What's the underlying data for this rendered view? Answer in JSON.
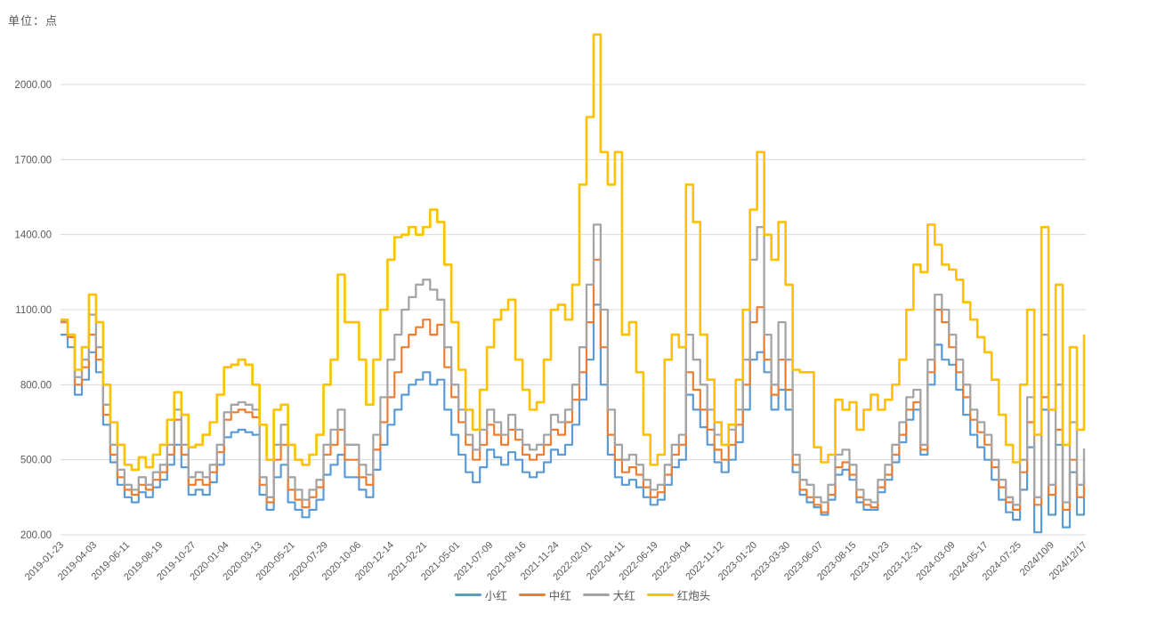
{
  "chart_data": {
    "type": "line",
    "unit_label": "单位：点",
    "grid": "horizontal",
    "legend_position": "bottom",
    "background_color": "#ffffff",
    "gridline_color": "#d9d9d9",
    "axis_text_color": "#595959",
    "y_axis": {
      "min": 200,
      "max": 2000,
      "gridline_step": 300
    },
    "y_ticks": [
      "2000.00",
      "1700.00",
      "1400.00",
      "1100.00",
      "800.00",
      "500.00",
      "200.00"
    ],
    "x_labels": [
      "2019-01-23",
      "2019-04-03",
      "2019-06-11",
      "2019-08-19",
      "2019-10-27",
      "2020-01-04",
      "2020-03-13",
      "2020-05-21",
      "2020-07-29",
      "2020-10-06",
      "2020-12-14",
      "2021-02-21",
      "2021-05-01",
      "2021-07-09",
      "2021-09-16",
      "2021-11-24",
      "2022-02-01",
      "2022-04-11",
      "2022-06-19",
      "2022-09-04",
      "2022-11-12",
      "2023-01-20",
      "2023-03-30",
      "2023-06-07",
      "2023-08-15",
      "2023-10-23",
      "2023-12-31",
      "2024-03-09",
      "2024-05-17",
      "2024-07-25",
      "2024/10/9",
      "2024/12/17"
    ],
    "series": [
      {
        "name": "小红",
        "color": "#5B9BD5",
        "values": [
          1000,
          950,
          760,
          820,
          930,
          850,
          640,
          490,
          400,
          350,
          330,
          370,
          350,
          390,
          420,
          480,
          560,
          470,
          360,
          380,
          360,
          410,
          480,
          590,
          610,
          620,
          610,
          600,
          360,
          300,
          430,
          480,
          330,
          300,
          270,
          300,
          340,
          440,
          480,
          520,
          430,
          430,
          380,
          350,
          460,
          560,
          640,
          700,
          760,
          800,
          820,
          850,
          800,
          820,
          700,
          600,
          520,
          450,
          410,
          470,
          540,
          510,
          480,
          530,
          500,
          450,
          430,
          450,
          490,
          540,
          520,
          560,
          640,
          740,
          900,
          1120,
          800,
          520,
          430,
          400,
          420,
          390,
          350,
          320,
          340,
          400,
          470,
          500,
          760,
          700,
          630,
          560,
          490,
          450,
          500,
          570,
          700,
          900,
          930,
          850,
          700,
          780,
          700,
          450,
          360,
          330,
          310,
          280,
          340,
          440,
          460,
          420,
          330,
          300,
          300,
          370,
          420,
          490,
          570,
          660,
          700,
          520,
          800,
          960,
          900,
          880,
          780,
          680,
          600,
          550,
          500,
          420,
          340,
          290,
          260,
          380,
          550,
          210,
          700,
          280,
          560,
          230,
          450,
          280,
          420
        ]
      },
      {
        "name": "中红",
        "color": "#ED7D31",
        "values": [
          1050,
          990,
          800,
          870,
          1000,
          900,
          680,
          520,
          430,
          380,
          360,
          400,
          380,
          420,
          450,
          520,
          660,
          520,
          400,
          420,
          400,
          450,
          530,
          660,
          690,
          700,
          690,
          670,
          400,
          330,
          500,
          560,
          380,
          340,
          310,
          350,
          390,
          520,
          560,
          620,
          500,
          500,
          430,
          400,
          540,
          650,
          750,
          850,
          950,
          1000,
          1030,
          1060,
          1000,
          1040,
          870,
          750,
          650,
          560,
          500,
          560,
          640,
          600,
          560,
          620,
          580,
          520,
          500,
          520,
          560,
          620,
          600,
          650,
          740,
          850,
          1050,
          1300,
          950,
          600,
          500,
          450,
          470,
          440,
          390,
          350,
          370,
          440,
          520,
          560,
          850,
          780,
          700,
          620,
          540,
          500,
          560,
          640,
          800,
          1050,
          1110,
          900,
          760,
          900,
          780,
          480,
          380,
          350,
          320,
          290,
          360,
          470,
          490,
          440,
          350,
          320,
          310,
          390,
          440,
          520,
          600,
          700,
          730,
          540,
          850,
          1100,
          1050,
          950,
          850,
          750,
          660,
          610,
          560,
          470,
          390,
          330,
          300,
          450,
          650,
          320,
          750,
          360,
          620,
          300,
          500,
          350,
          450
        ]
      },
      {
        "name": "大红",
        "color": "#A5A5A5",
        "values": [
          1055,
          1000,
          830,
          900,
          1080,
          950,
          720,
          560,
          460,
          400,
          380,
          430,
          400,
          450,
          480,
          560,
          700,
          560,
          430,
          450,
          430,
          480,
          560,
          690,
          720,
          730,
          720,
          700,
          430,
          350,
          560,
          640,
          430,
          380,
          340,
          380,
          420,
          560,
          620,
          700,
          560,
          560,
          480,
          440,
          600,
          750,
          900,
          1000,
          1100,
          1150,
          1200,
          1220,
          1180,
          1140,
          950,
          800,
          700,
          600,
          540,
          620,
          700,
          650,
          600,
          680,
          620,
          560,
          540,
          560,
          600,
          680,
          650,
          700,
          800,
          950,
          1200,
          1440,
          1100,
          700,
          560,
          500,
          520,
          480,
          420,
          380,
          400,
          480,
          560,
          600,
          1000,
          900,
          800,
          700,
          600,
          560,
          620,
          700,
          900,
          1300,
          1430,
          1000,
          800,
          1050,
          900,
          520,
          420,
          400,
          350,
          330,
          400,
          520,
          540,
          480,
          380,
          340,
          330,
          420,
          480,
          560,
          650,
          750,
          780,
          560,
          900,
          1160,
          1100,
          1000,
          900,
          800,
          700,
          650,
          600,
          500,
          420,
          350,
          320,
          500,
          750,
          350,
          1000,
          400,
          800,
          330,
          650,
          400,
          545
        ]
      },
      {
        "name": "红炮头",
        "color": "#FFC000",
        "values": [
          1060,
          1000,
          860,
          950,
          1160,
          1050,
          800,
          650,
          560,
          480,
          460,
          510,
          470,
          520,
          560,
          660,
          770,
          680,
          550,
          560,
          600,
          650,
          760,
          870,
          880,
          900,
          880,
          800,
          640,
          500,
          700,
          720,
          560,
          500,
          480,
          520,
          600,
          800,
          900,
          1240,
          1050,
          1050,
          900,
          720,
          900,
          1100,
          1300,
          1390,
          1400,
          1430,
          1400,
          1430,
          1500,
          1450,
          1280,
          1050,
          860,
          700,
          620,
          780,
          950,
          1060,
          1100,
          1140,
          900,
          780,
          700,
          730,
          900,
          1100,
          1120,
          1060,
          1200,
          1600,
          1870,
          2200,
          1730,
          1600,
          1730,
          1000,
          1050,
          850,
          600,
          480,
          520,
          900,
          1000,
          950,
          1600,
          1450,
          1000,
          820,
          650,
          560,
          640,
          820,
          1100,
          1500,
          1730,
          1400,
          1300,
          1450,
          1200,
          860,
          850,
          850,
          550,
          490,
          520,
          740,
          700,
          730,
          620,
          700,
          760,
          700,
          740,
          800,
          900,
          1100,
          1280,
          1250,
          1440,
          1360,
          1280,
          1260,
          1220,
          1130,
          1060,
          990,
          930,
          820,
          680,
          560,
          490,
          800,
          1100,
          600,
          1430,
          700,
          1200,
          560,
          950,
          620,
          1000
        ]
      }
    ]
  }
}
